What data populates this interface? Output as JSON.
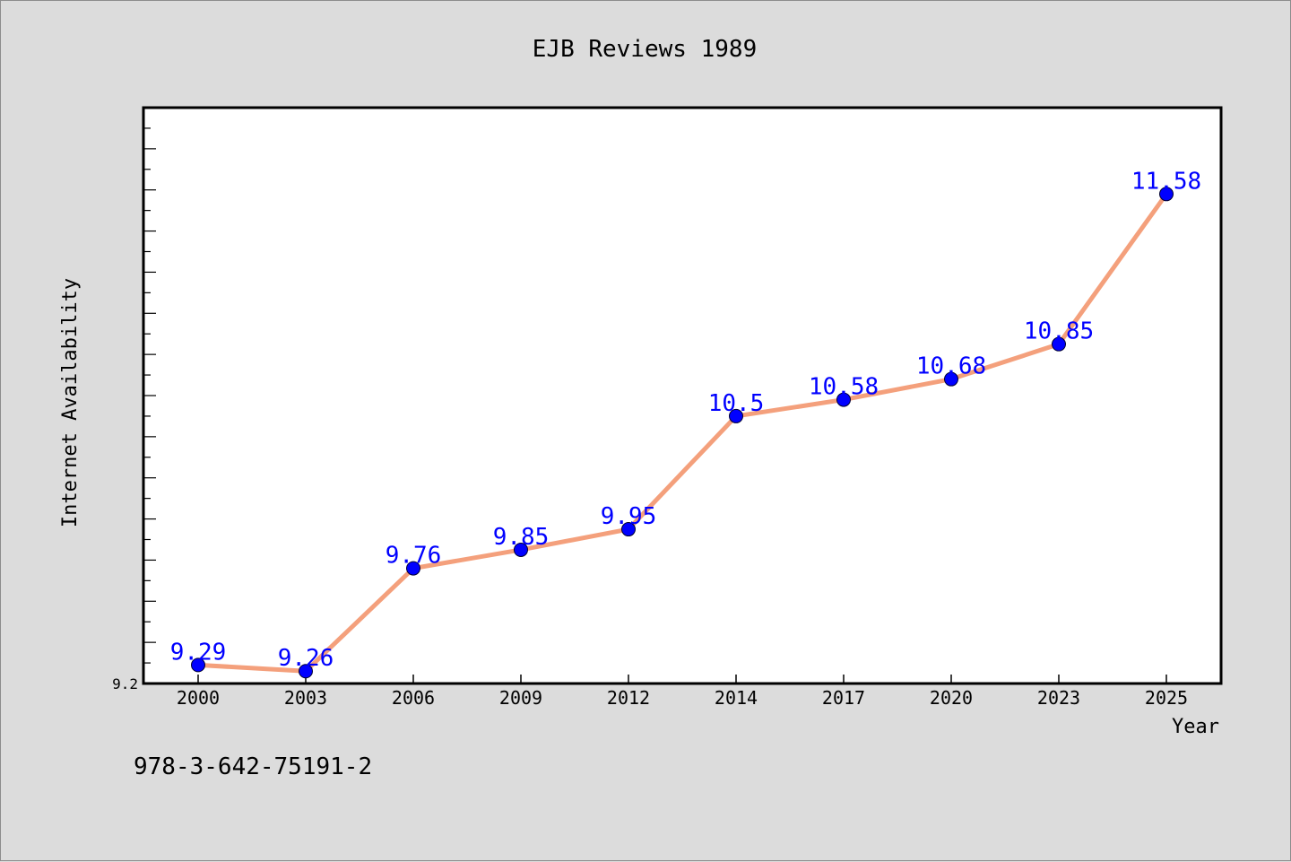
{
  "chart_data": {
    "type": "line",
    "title": "EJB Reviews 1989",
    "xlabel": "Year",
    "ylabel": "Internet Availability",
    "categories": [
      "2000",
      "2003",
      "2006",
      "2009",
      "2012",
      "2014",
      "2017",
      "2020",
      "2023",
      "2025"
    ],
    "series": [
      {
        "values": [
          9.29,
          9.26,
          9.76,
          9.85,
          9.95,
          10.5,
          10.58,
          10.68,
          10.85,
          11.58
        ],
        "labels": [
          "9.29",
          "9.26",
          "9.76",
          "9.85",
          "9.95",
          "10.5",
          "10.58",
          "10.68",
          "10.85",
          "11.58"
        ]
      }
    ],
    "ylim": [
      9.2,
      12.0
    ],
    "ytick_labels": [
      "9.2"
    ],
    "grid": false,
    "colors": {
      "line": "#f4a07c",
      "marker": "#0000ff",
      "data_label": "#0000ff"
    }
  },
  "footer": {
    "isbn": "978-3-642-75191-2"
  }
}
